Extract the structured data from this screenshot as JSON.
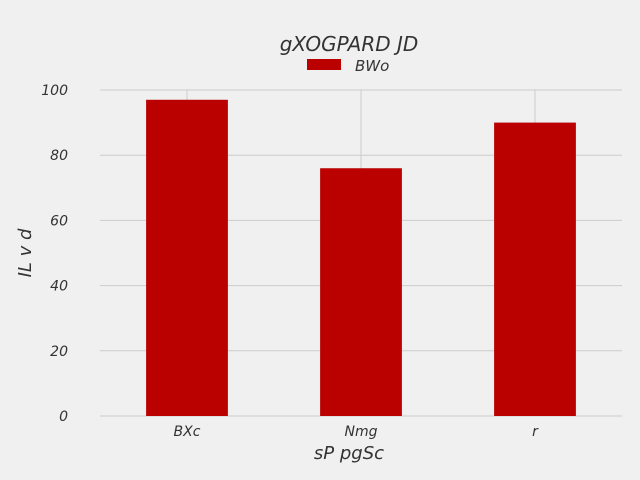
{
  "chart_data": {
    "type": "bar",
    "title": "gXOGPARD JD",
    "xlabel": "sP pgSc",
    "ylabel": "IL v d",
    "categories": [
      "BXc",
      "Nmg",
      "r"
    ],
    "series": [
      {
        "name": "BWo",
        "values": [
          97,
          76,
          90
        ],
        "color": "#bb0000"
      }
    ],
    "ylim": [
      0,
      100
    ],
    "yticks": [
      0,
      20,
      40,
      60,
      80,
      100
    ],
    "grid": true,
    "legend_position": "top-center",
    "background": "#f0f0f0"
  }
}
